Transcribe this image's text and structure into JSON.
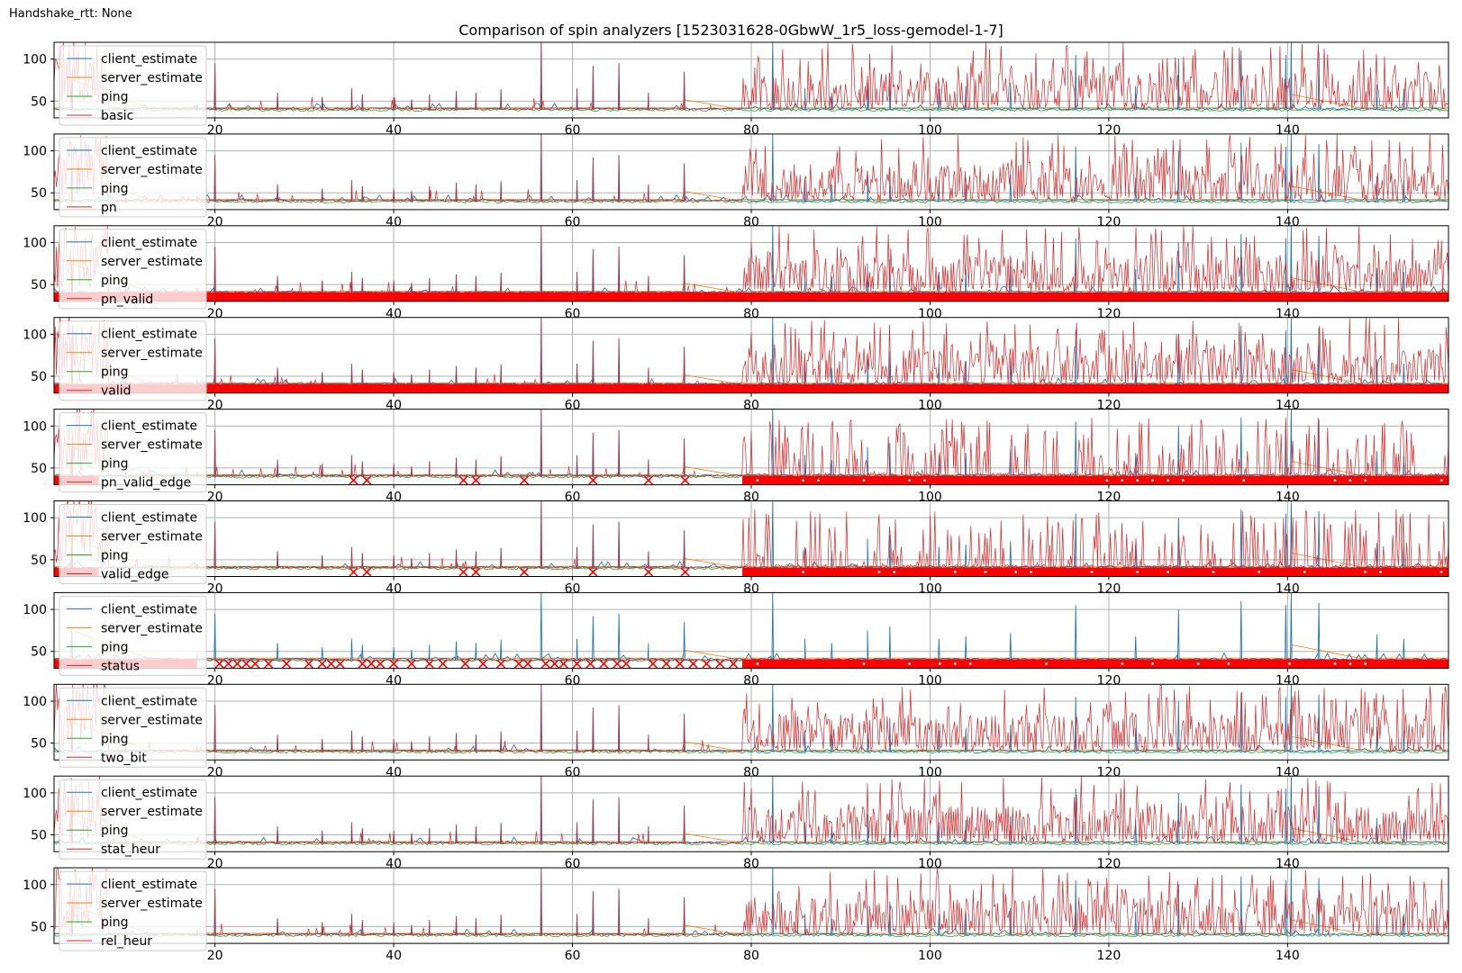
{
  "figure": {
    "note": "Handshake_rtt: None",
    "title": "Comparison of spin analyzers [1523031628-0GbwW_1r5_loss-gemodel-1-7]"
  },
  "colors": {
    "client_estimate": "#1f77b4",
    "server_estimate": "#ff7f0e",
    "ping": "#2ca02c",
    "analyzer": "#d62728",
    "invalid_marker": "#ff0000",
    "grid": "#b0b0b0"
  },
  "chart_data": {
    "type": "line",
    "shared_x_axis": {
      "xlim": [
        2,
        158
      ],
      "ticks": [
        20,
        40,
        60,
        80,
        100,
        120,
        140
      ],
      "tick_labels": [
        "20",
        "40",
        "60",
        "80",
        "100",
        "120",
        "140"
      ]
    },
    "shared_y_axis": {
      "ylim": [
        30,
        120
      ],
      "ticks": [
        50,
        100
      ],
      "tick_labels": [
        "50",
        "100"
      ]
    },
    "grid": true,
    "legend_location": "upper-left",
    "common_series": [
      "client_estimate",
      "server_estimate",
      "ping"
    ],
    "baseline_rtt": 40,
    "client_spikes": [
      {
        "x": 4,
        "y": 75
      },
      {
        "x": 10,
        "y": 45
      },
      {
        "x": 18,
        "y": 46
      },
      {
        "x": 20,
        "y": 95
      },
      {
        "x": 27,
        "y": 60
      },
      {
        "x": 32,
        "y": 55
      },
      {
        "x": 35.3,
        "y": 65
      },
      {
        "x": 36.5,
        "y": 58
      },
      {
        "x": 40,
        "y": 55
      },
      {
        "x": 42,
        "y": 52
      },
      {
        "x": 44,
        "y": 58
      },
      {
        "x": 47,
        "y": 62
      },
      {
        "x": 49.2,
        "y": 60
      },
      {
        "x": 52,
        "y": 64
      },
      {
        "x": 56.5,
        "y": 120
      },
      {
        "x": 60.5,
        "y": 65
      },
      {
        "x": 62.3,
        "y": 92
      },
      {
        "x": 65.2,
        "y": 95
      },
      {
        "x": 68.5,
        "y": 60
      },
      {
        "x": 72.5,
        "y": 85
      },
      {
        "x": 82.4,
        "y": 120
      },
      {
        "x": 86,
        "y": 65
      },
      {
        "x": 89,
        "y": 60
      },
      {
        "x": 93,
        "y": 75
      },
      {
        "x": 95.5,
        "y": 80
      },
      {
        "x": 101,
        "y": 65
      },
      {
        "x": 104,
        "y": 68
      },
      {
        "x": 109,
        "y": 72
      },
      {
        "x": 116.3,
        "y": 105
      },
      {
        "x": 123,
        "y": 68
      },
      {
        "x": 127.8,
        "y": 100
      },
      {
        "x": 134.8,
        "y": 110
      },
      {
        "x": 139.8,
        "y": 105
      },
      {
        "x": 140.4,
        "y": 120
      },
      {
        "x": 143.5,
        "y": 108
      },
      {
        "x": 150,
        "y": 70
      },
      {
        "x": 153,
        "y": 65
      }
    ],
    "server_ramps": [
      {
        "x0": 4,
        "x1": 12,
        "y_from": 75,
        "y_to": 44
      },
      {
        "x0": 72.3,
        "x1": 79,
        "y_from": 52,
        "y_to": 40
      },
      {
        "x0": 140.4,
        "x1": 148,
        "y_from": 58,
        "y_to": 42
      }
    ],
    "analyzers": [
      {
        "name": "basic",
        "kind": "noisy",
        "invalid_markers": [],
        "x_markers_sparse": [],
        "dense_markers_ranges": [],
        "ai": 0
      },
      {
        "name": "pn",
        "kind": "noisy",
        "invalid_markers": [],
        "x_markers_sparse": [],
        "dense_markers_ranges": [],
        "ai": 1
      },
      {
        "name": "pn_valid",
        "kind": "noisy",
        "invalid_markers": [
          2,
          158
        ],
        "x_markers_sparse": [
          49.2,
          62.3,
          68.5,
          79,
          79.6,
          80.4,
          81.4,
          82.3,
          83.2,
          85,
          86.6,
          88.6,
          90.6,
          91.1,
          92.3,
          93,
          93.6,
          94.2,
          95.2,
          96,
          100,
          101.6,
          102.7,
          104.2,
          104.7,
          105.3,
          105.7,
          106.3,
          108.2,
          110.2,
          113.8,
          114.4,
          114.9,
          115.5,
          116.1,
          117.6,
          117.9,
          120.4,
          126.7,
          127.2,
          127.7,
          128.4,
          130.2,
          131.4,
          132.6,
          134.7,
          135.7,
          137.1,
          138.3,
          139,
          139.6,
          140.2,
          140.8,
          143.2,
          143.7,
          144.4,
          145.4,
          146.7,
          148.9,
          150.9,
          153.8,
          156.4,
          157.5
        ],
        "dense_markers_ranges": [],
        "ai": 2
      },
      {
        "name": "valid",
        "kind": "noisy",
        "invalid_markers": [
          2,
          158
        ],
        "x_markers_sparse": [
          49.2,
          62.3,
          68.5,
          79,
          79.6,
          80.4,
          81.4,
          82.3,
          83.2,
          85,
          86.6,
          88.6,
          90.6,
          91.1,
          92.3,
          93,
          93.6,
          94.2,
          95.2,
          96,
          100,
          101.6,
          102.7,
          104.2,
          104.7,
          105.3,
          105.7,
          106.3,
          108.2,
          110.2,
          113.8,
          114.4,
          114.9,
          115.5,
          116.1,
          117.6,
          117.9,
          120.4,
          126.7,
          127.2,
          127.7,
          128.4,
          130.2,
          131.4,
          132.6,
          134.7,
          135.7,
          137.1,
          138.3,
          139,
          139.6,
          140.2,
          140.8,
          143.2,
          143.7,
          144.4,
          145.4,
          146.7,
          148.9,
          150.9,
          153.8,
          156.4,
          157.5
        ],
        "dense_markers_ranges": [],
        "ai": 3
      },
      {
        "name": "pn_valid_edge",
        "kind": "sparse",
        "invalid_markers": [
          2,
          7
        ],
        "x_markers_sparse": [
          35.5,
          37,
          47.8,
          49.2,
          54.6,
          62.3,
          68.5,
          72.6
        ],
        "dense_markers_ranges": [
          [
            79,
            158
          ]
        ],
        "ai": 4
      },
      {
        "name": "valid_edge",
        "kind": "sparse",
        "invalid_markers": [
          2,
          7
        ],
        "x_markers_sparse": [
          35.5,
          37,
          47.8,
          49.2,
          54.6,
          62.3,
          68.5,
          72.6
        ],
        "dense_markers_ranges": [
          [
            79,
            158
          ]
        ],
        "ai": 5
      },
      {
        "name": "status",
        "kind": "status",
        "invalid_markers": [
          2,
          18
        ],
        "x_markers_sparse": [
          20.5,
          21.5,
          22.5,
          23.5,
          24.5,
          26,
          28,
          30.5,
          32,
          33,
          34,
          36.5,
          37.5,
          38.5,
          40,
          42,
          44,
          45.5,
          48,
          50,
          52,
          54,
          55,
          57,
          58,
          59,
          60.5,
          62,
          63.5,
          65,
          66,
          69,
          70.5,
          72,
          73.5,
          75,
          76.5,
          78
        ],
        "dense_markers_ranges": [
          [
            79,
            158
          ]
        ],
        "ai": 6
      },
      {
        "name": "two_bit",
        "kind": "noisy",
        "invalid_markers": [],
        "x_markers_sparse": [],
        "dense_markers_ranges": [],
        "ai": 7
      },
      {
        "name": "stat_heur",
        "kind": "noisy",
        "invalid_markers": [],
        "x_markers_sparse": [],
        "dense_markers_ranges": [],
        "ai": 8
      },
      {
        "name": "rel_heur",
        "kind": "noisy",
        "invalid_markers": [],
        "x_markers_sparse": [],
        "dense_markers_ranges": [],
        "ai": 9
      }
    ]
  }
}
